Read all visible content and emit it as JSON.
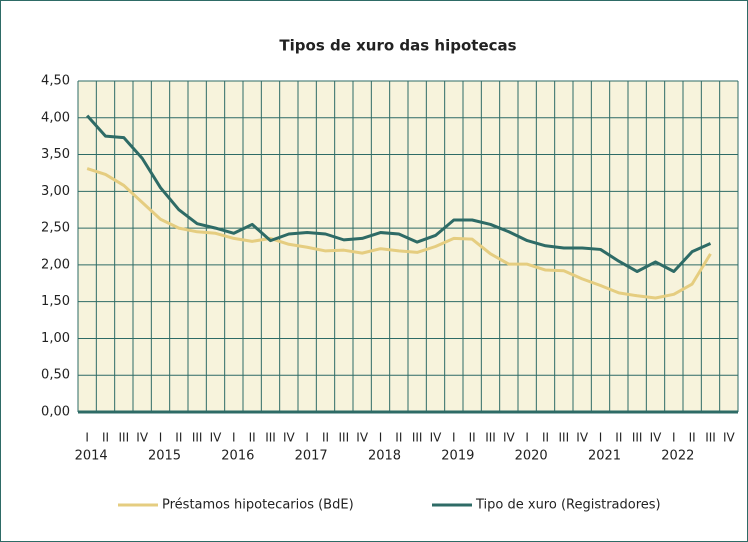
{
  "chart_data": {
    "type": "line",
    "title": "Tipos de xuro das hipotecas",
    "categories": [
      "I",
      "II",
      "III",
      "IV",
      "I",
      "II",
      "III",
      "IV",
      "I",
      "II",
      "III",
      "IV",
      "I",
      "II",
      "III",
      "IV",
      "I",
      "II",
      "III",
      "IV",
      "I",
      "II",
      "III",
      "IV",
      "I",
      "II",
      "III",
      "IV",
      "I",
      "II",
      "III",
      "IV",
      "I",
      "II",
      "III",
      "IV"
    ],
    "years": [
      "2014",
      "2015",
      "2016",
      "2017",
      "2018",
      "2019",
      "2020",
      "2021",
      "2022"
    ],
    "series": [
      {
        "name": "Préstamos hipotecarios (BdE)",
        "color": "#e5cd80",
        "values": [
          3.31,
          3.23,
          3.08,
          2.85,
          2.62,
          2.5,
          2.45,
          2.43,
          2.36,
          2.32,
          2.36,
          2.28,
          2.24,
          2.19,
          2.2,
          2.16,
          2.22,
          2.19,
          2.17,
          2.25,
          2.36,
          2.35,
          2.15,
          2.01,
          2.01,
          1.93,
          1.92,
          1.81,
          1.72,
          1.62,
          1.58,
          1.55,
          1.6,
          1.74,
          2.15,
          null
        ]
      },
      {
        "name": "Tipo de xuro (Registradores)",
        "color": "#2e6b66",
        "values": [
          4.03,
          3.75,
          3.73,
          3.45,
          3.05,
          2.75,
          2.56,
          2.5,
          2.43,
          2.55,
          2.33,
          2.42,
          2.44,
          2.42,
          2.34,
          2.36,
          2.44,
          2.42,
          2.31,
          2.4,
          2.61,
          2.61,
          2.55,
          2.45,
          2.33,
          2.26,
          2.23,
          2.23,
          2.21,
          2.05,
          1.91,
          2.04,
          1.91,
          2.18,
          2.29,
          null
        ]
      }
    ],
    "ylim": [
      0,
      4.5
    ],
    "yticks": [
      {
        "value": 0,
        "label": "0,00"
      },
      {
        "value": 0.5,
        "label": "0,50"
      },
      {
        "value": 1,
        "label": "1,00"
      },
      {
        "value": 1.5,
        "label": "1,50"
      },
      {
        "value": 2,
        "label": "2,00"
      },
      {
        "value": 2.5,
        "label": "2,50"
      },
      {
        "value": 3,
        "label": "3,00"
      },
      {
        "value": 3.5,
        "label": "3,50"
      },
      {
        "value": 4,
        "label": "4,00"
      },
      {
        "value": 4.5,
        "label": "4,50"
      }
    ],
    "grid": true
  }
}
